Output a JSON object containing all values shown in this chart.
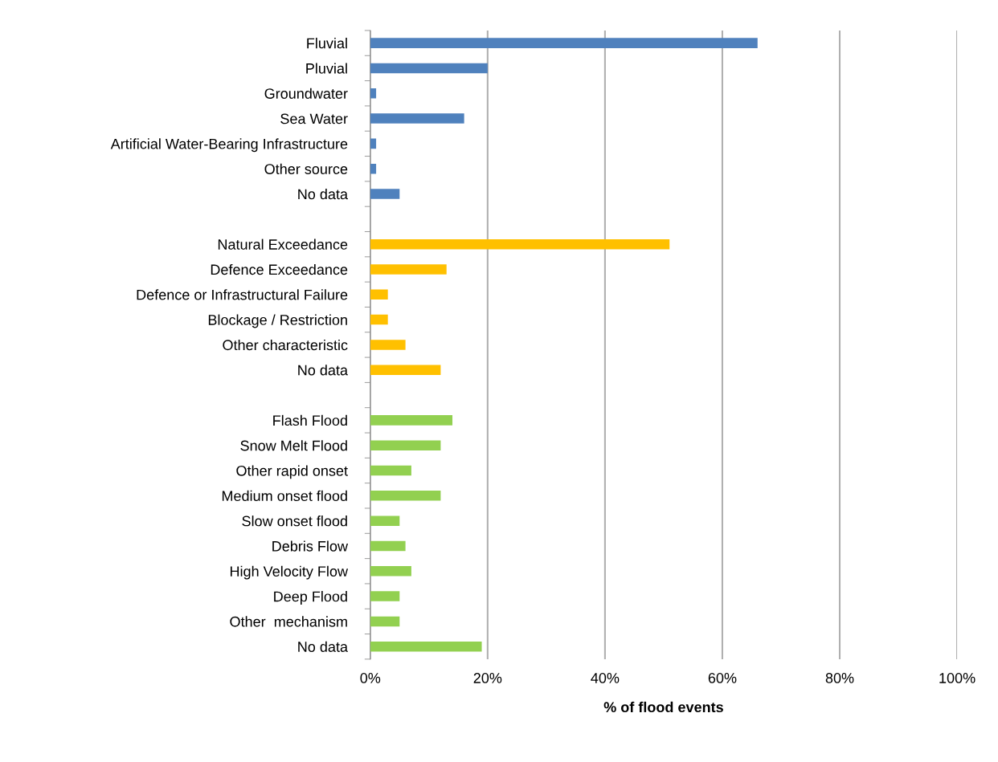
{
  "chart_data": {
    "type": "bar",
    "orientation": "horizontal",
    "xlabel": "% of flood events",
    "categories": [
      "Fluvial",
      "Pluvial",
      "Groundwater",
      "Sea Water",
      "Artificial Water-Bearing Infrastructure",
      "Other source",
      "No data",
      null,
      "Natural Exceedance",
      "Defence Exceedance",
      "Defence or Infrastructural Failure",
      "Blockage / Restriction",
      "Other characteristic",
      "No data",
      null,
      "Flash Flood",
      "Snow Melt Flood",
      "Other rapid onset",
      "Medium onset flood",
      "Slow onset flood",
      "Debris Flow",
      "High Velocity Flow",
      "Deep Flood",
      "Other  mechanism",
      "No data"
    ],
    "values": [
      66,
      20,
      1,
      16,
      1,
      1,
      5,
      null,
      51,
      13,
      3,
      3,
      6,
      12,
      null,
      14,
      12,
      7,
      12,
      5,
      6,
      7,
      5,
      5,
      19
    ],
    "colors": [
      "#4f81bd",
      "#4f81bd",
      "#4f81bd",
      "#4f81bd",
      "#4f81bd",
      "#4f81bd",
      "#4f81bd",
      null,
      "#ffc000",
      "#ffc000",
      "#ffc000",
      "#ffc000",
      "#ffc000",
      "#ffc000",
      null,
      "#92d050",
      "#92d050",
      "#92d050",
      "#92d050",
      "#92d050",
      "#92d050",
      "#92d050",
      "#92d050",
      "#92d050",
      "#92d050"
    ],
    "xlim": [
      0,
      100
    ],
    "xticks": [
      {
        "value": 0,
        "label": "0%"
      },
      {
        "value": 20,
        "label": "20%"
      },
      {
        "value": 40,
        "label": "40%"
      },
      {
        "value": 60,
        "label": "60%"
      },
      {
        "value": 80,
        "label": "80%"
      },
      {
        "value": 100,
        "label": "100%"
      }
    ],
    "grid": "x"
  }
}
